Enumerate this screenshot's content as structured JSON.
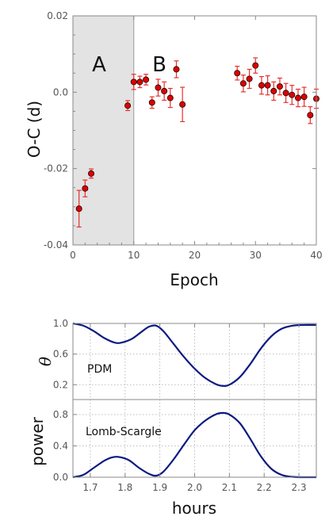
{
  "chart_data": [
    {
      "type": "scatter",
      "xlabel": "Epoch",
      "ylabel": "O-C (d)",
      "xlim": [
        0,
        40
      ],
      "ylim": [
        -0.04,
        0.02
      ],
      "xticks": [
        "0",
        "10",
        "20",
        "30",
        "40"
      ],
      "yticks": [
        "-0.04",
        "-0.02",
        "0.0",
        "0.02"
      ],
      "shaded_region": {
        "x_start": 0,
        "x_end": 10,
        "color": "#e3e3e3"
      },
      "region_labels": [
        {
          "text": "A",
          "x": 4.3,
          "y": 0.0055
        },
        {
          "text": "B",
          "x": 14.2,
          "y": 0.0055
        }
      ],
      "marker_color": "#dd0000",
      "errorbar_color": "#e83030",
      "points": [
        {
          "x": 1,
          "y": -0.0305,
          "err": 0.0048
        },
        {
          "x": 2,
          "y": -0.0252,
          "err": 0.0022
        },
        {
          "x": 3,
          "y": -0.0213,
          "err": 0.0012
        },
        {
          "x": 9,
          "y": -0.0035,
          "err": 0.0013
        },
        {
          "x": 10,
          "y": 0.0027,
          "err": 0.002
        },
        {
          "x": 11,
          "y": 0.0027,
          "err": 0.0015
        },
        {
          "x": 12,
          "y": 0.0033,
          "err": 0.0014
        },
        {
          "x": 13,
          "y": -0.0027,
          "err": 0.0015
        },
        {
          "x": 14,
          "y": 0.0012,
          "err": 0.0022
        },
        {
          "x": 15,
          "y": 0.0003,
          "err": 0.0024
        },
        {
          "x": 16,
          "y": -0.0015,
          "err": 0.0025
        },
        {
          "x": 17,
          "y": 0.006,
          "err": 0.0022
        },
        {
          "x": 18,
          "y": -0.0032,
          "err": 0.0045
        },
        {
          "x": 27,
          "y": 0.005,
          "err": 0.0018
        },
        {
          "x": 28,
          "y": 0.0023,
          "err": 0.0022
        },
        {
          "x": 29,
          "y": 0.0035,
          "err": 0.0025
        },
        {
          "x": 30,
          "y": 0.007,
          "err": 0.002
        },
        {
          "x": 31,
          "y": 0.0018,
          "err": 0.0023
        },
        {
          "x": 32,
          "y": 0.0018,
          "err": 0.0025
        },
        {
          "x": 33,
          "y": 0.0003,
          "err": 0.0024
        },
        {
          "x": 34,
          "y": 0.0015,
          "err": 0.0022
        },
        {
          "x": 35,
          "y": -0.0002,
          "err": 0.0025
        },
        {
          "x": 36,
          "y": -0.0007,
          "err": 0.0025
        },
        {
          "x": 37,
          "y": -0.0015,
          "err": 0.0023
        },
        {
          "x": 38,
          "y": -0.0012,
          "err": 0.0025
        },
        {
          "x": 39,
          "y": -0.006,
          "err": 0.0022
        },
        {
          "x": 40,
          "y": -0.0017,
          "err": 0.0025
        }
      ]
    },
    {
      "type": "line",
      "ylabel": "θ",
      "label": "PDM",
      "xlim": [
        1.65,
        2.35
      ],
      "ylim": [
        0.1,
        1.0
      ],
      "yticks": [
        "0.2",
        "0.6",
        "1.0"
      ],
      "grid": true,
      "line_color": "#0a1a80",
      "x": [
        1.65,
        1.68,
        1.71,
        1.74,
        1.77,
        1.79,
        1.82,
        1.85,
        1.87,
        1.89,
        1.91,
        1.94,
        1.97,
        2.0,
        2.03,
        2.06,
        2.08,
        2.1,
        2.13,
        2.16,
        2.19,
        2.22,
        2.25,
        2.28,
        2.31,
        2.35
      ],
      "y": [
        1.0,
        0.97,
        0.9,
        0.81,
        0.75,
        0.75,
        0.8,
        0.9,
        0.96,
        0.97,
        0.9,
        0.73,
        0.56,
        0.41,
        0.29,
        0.21,
        0.185,
        0.2,
        0.3,
        0.47,
        0.67,
        0.83,
        0.93,
        0.97,
        0.98,
        0.98
      ]
    },
    {
      "type": "line",
      "xlabel": "hours",
      "ylabel": "power",
      "label": "Lomb-Scargle",
      "xlim": [
        1.65,
        2.35
      ],
      "ylim": [
        0.0,
        0.9
      ],
      "xticks": [
        "1.7",
        "1.8",
        "1.9",
        "2.0",
        "2.1",
        "2.2",
        "2.3"
      ],
      "yticks": [
        "0.0",
        "0.4",
        "0.8"
      ],
      "grid": true,
      "line_color": "#0a1a80",
      "x": [
        1.65,
        1.68,
        1.71,
        1.74,
        1.76,
        1.78,
        1.81,
        1.84,
        1.87,
        1.89,
        1.91,
        1.94,
        1.97,
        2.0,
        2.03,
        2.06,
        2.08,
        2.1,
        2.13,
        2.16,
        2.19,
        2.22,
        2.25,
        2.28,
        2.31,
        2.35
      ],
      "y": [
        0.0,
        0.03,
        0.12,
        0.21,
        0.25,
        0.26,
        0.22,
        0.12,
        0.04,
        0.02,
        0.07,
        0.23,
        0.42,
        0.6,
        0.72,
        0.8,
        0.82,
        0.8,
        0.69,
        0.49,
        0.27,
        0.11,
        0.03,
        0.005,
        0.0,
        0.0
      ]
    }
  ]
}
